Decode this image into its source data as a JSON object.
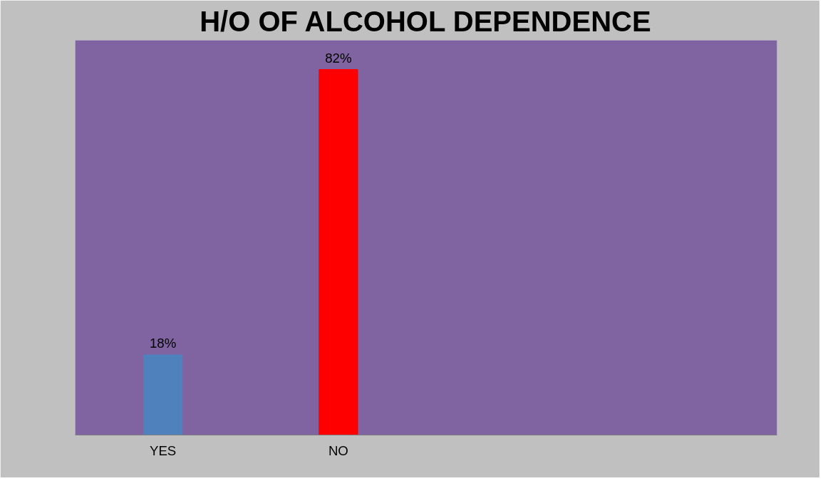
{
  "chart_data": {
    "type": "bar",
    "title": "H/O OF ALCOHOL DEPENDENCE",
    "categories": [
      "YES",
      "NO",
      null,
      null
    ],
    "values": [
      18,
      82,
      null,
      null
    ],
    "colors": [
      "#4f81bd",
      "#ff0000",
      null,
      null
    ],
    "value_labels": [
      "18%",
      "82%",
      null,
      null
    ]
  }
}
